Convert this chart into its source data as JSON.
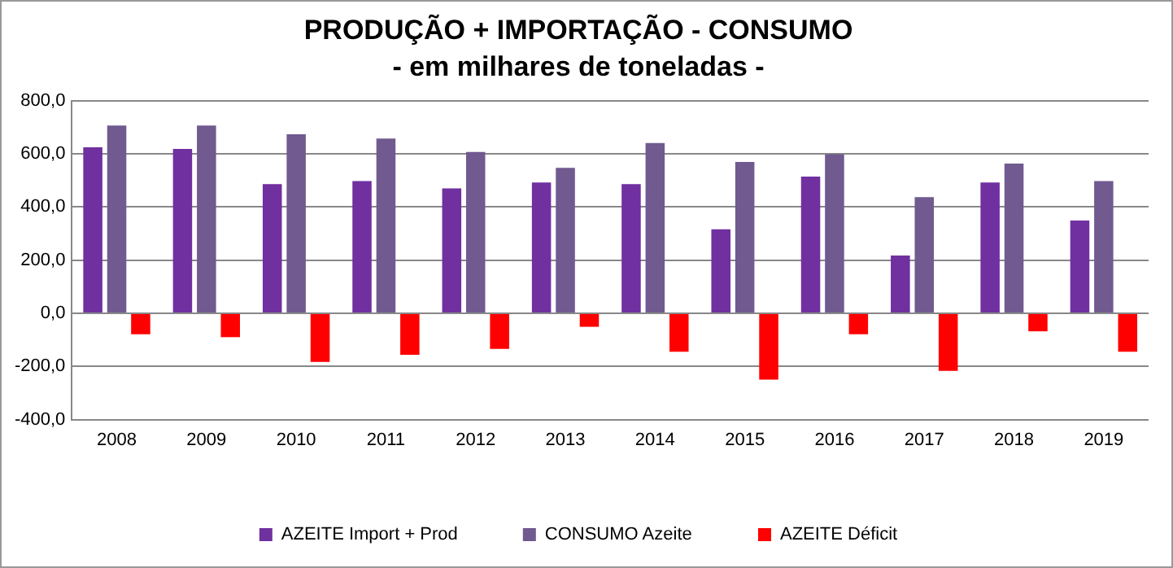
{
  "chart_data": {
    "type": "bar",
    "title": "PRODUÇÃO + IMPORTAÇÃO - CONSUMO",
    "subtitle": "- em milhares de toneladas -",
    "categories": [
      "2008",
      "2009",
      "2010",
      "2011",
      "2012",
      "2013",
      "2014",
      "2015",
      "2016",
      "2017",
      "2018",
      "2019"
    ],
    "series": [
      {
        "name": "AZEITE Import + Prod",
        "color": "#7030a0",
        "values": [
          624,
          618,
          486,
          497,
          470,
          492,
          486,
          316,
          514,
          217,
          492,
          349
        ]
      },
      {
        "name": "CONSUMO Azeite",
        "color": "#705a8f",
        "values": [
          706,
          706,
          673,
          657,
          607,
          547,
          640,
          569,
          598,
          437,
          563,
          497
        ]
      },
      {
        "name": "AZEITE Déficit",
        "color": "#ff0000",
        "values": [
          -79,
          -90,
          -183,
          -156,
          -134,
          -51,
          -145,
          -250,
          -79,
          -217,
          -68,
          -145
        ]
      }
    ],
    "ylim": [
      -400,
      800
    ],
    "yticks": [
      {
        "value": -400,
        "label": "-400,0"
      },
      {
        "value": -200,
        "label": "-200,0"
      },
      {
        "value": 0,
        "label": "0,0"
      },
      {
        "value": 200,
        "label": "200,0"
      },
      {
        "value": 400,
        "label": "400,0"
      },
      {
        "value": 600,
        "label": "600,0"
      },
      {
        "value": 800,
        "label": "800,0"
      }
    ],
    "grid": "y",
    "legend": "bottom"
  }
}
